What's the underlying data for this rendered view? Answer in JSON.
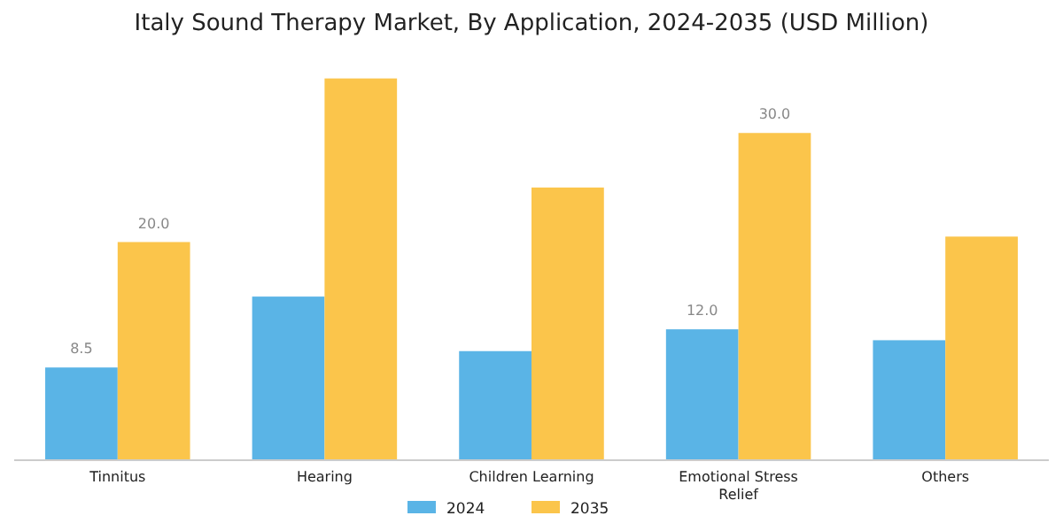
{
  "chart_data": {
    "type": "bar",
    "title": "Italy Sound Therapy Market, By Application, 2024-2035 (USD Million)",
    "categories": [
      "Tinnitus",
      "Hearing",
      "Children Learning",
      "Emotional Stress Relief",
      "Others"
    ],
    "series": [
      {
        "name": "2024",
        "color": "#5ab4e6",
        "values": [
          8.5,
          15.0,
          10.0,
          12.0,
          11.0
        ],
        "value_labels": [
          "8.5",
          null,
          null,
          "12.0",
          null
        ]
      },
      {
        "name": "2035",
        "color": "#fbc54b",
        "values": [
          20.0,
          35.0,
          25.0,
          30.0,
          20.5
        ],
        "value_labels": [
          "20.0",
          null,
          null,
          "30.0",
          null
        ]
      }
    ],
    "legend": "bottom"
  }
}
